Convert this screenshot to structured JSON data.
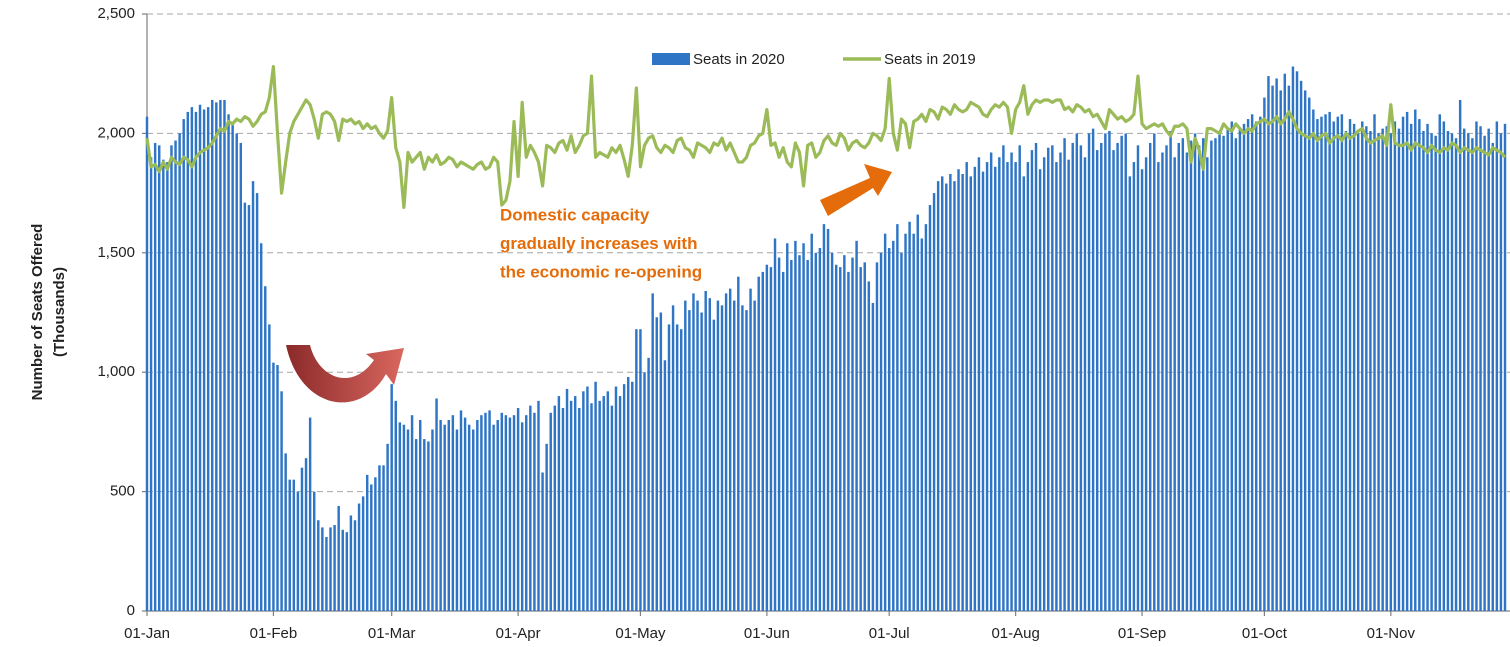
{
  "chart_data": {
    "type": "bar-line",
    "ylabel": [
      "Number of Seats Offered",
      "(Thousands)"
    ],
    "annotation": [
      "Domestic capacity",
      "gradually increases with",
      "the economic re-opening"
    ],
    "annotation_color": "#e46c0a",
    "ylim": [
      0,
      2500
    ],
    "yticks": [
      0,
      500,
      {
        "value": 1000,
        "label": "1,000"
      },
      {
        "value": 1500,
        "label": "1,500"
      },
      {
        "value": 2000,
        "label": "2,000"
      },
      {
        "value": 2500,
        "label": "2,500"
      }
    ],
    "grid": true,
    "categories": [
      "01-Jan",
      null,
      null,
      null,
      null,
      null,
      null,
      null,
      null,
      null,
      null,
      null,
      null,
      null,
      null,
      null,
      null,
      null,
      null,
      null,
      null,
      null,
      null,
      null,
      null,
      null,
      null,
      null,
      null,
      null,
      null,
      "01-Feb",
      null,
      null,
      null,
      null,
      null,
      null,
      null,
      null,
      null,
      null,
      null,
      null,
      null,
      null,
      null,
      null,
      null,
      null,
      null,
      null,
      null,
      null,
      null,
      null,
      null,
      null,
      null,
      null,
      "01-Mar",
      null,
      null,
      null,
      null,
      null,
      null,
      null,
      null,
      null,
      null,
      null,
      null,
      null,
      null,
      null,
      null,
      null,
      null,
      null,
      null,
      null,
      null,
      null,
      null,
      null,
      null,
      null,
      null,
      null,
      null,
      "01-Apr",
      null,
      null,
      null,
      null,
      null,
      null,
      null,
      null,
      null,
      null,
      null,
      null,
      null,
      null,
      null,
      null,
      null,
      null,
      null,
      null,
      null,
      null,
      null,
      null,
      null,
      null,
      null,
      null,
      null,
      "01-May",
      null,
      null,
      null,
      null,
      null,
      null,
      null,
      null,
      null,
      null,
      null,
      null,
      null,
      null,
      null,
      null,
      null,
      null,
      null,
      null,
      null,
      null,
      null,
      null,
      null,
      null,
      null,
      null,
      null,
      null,
      "01-Jun",
      null,
      null,
      null,
      null,
      null,
      null,
      null,
      null,
      null,
      null,
      null,
      null,
      null,
      null,
      null,
      null,
      null,
      null,
      null,
      null,
      null,
      null,
      null,
      null,
      null,
      null,
      null,
      null,
      null,
      "01-Jul",
      null,
      null,
      null,
      null,
      null,
      null,
      null,
      null,
      null,
      null,
      null,
      null,
      null,
      null,
      null,
      null,
      null,
      null,
      null,
      null,
      null,
      null,
      null,
      null,
      null,
      null,
      null,
      null,
      null,
      null,
      "01-Aug",
      null,
      null,
      null,
      null,
      null,
      null,
      null,
      null,
      null,
      null,
      null,
      null,
      null,
      null,
      null,
      null,
      null,
      null,
      null,
      null,
      null,
      null,
      null,
      null,
      null,
      null,
      null,
      null,
      null,
      null,
      "01-Sep",
      null,
      null,
      null,
      null,
      null,
      null,
      null,
      null,
      null,
      null,
      null,
      null,
      null,
      null,
      null,
      null,
      null,
      null,
      null,
      null,
      null,
      null,
      null,
      null,
      null,
      null,
      null,
      null,
      null,
      "01-Oct",
      null,
      null,
      null,
      null,
      null,
      null,
      null,
      null,
      null,
      null,
      null,
      null,
      null,
      null,
      null,
      null,
      null,
      null,
      null,
      null,
      null,
      null,
      null,
      null,
      null,
      null,
      null,
      null,
      null,
      null,
      "01-Nov",
      null,
      null,
      null,
      null,
      null,
      null,
      null,
      null,
      null,
      null,
      null,
      null,
      null,
      null,
      null,
      null,
      null,
      null,
      null,
      null,
      null,
      null,
      null,
      null,
      null,
      null,
      null,
      null
    ],
    "series": [
      {
        "name": "Seats in 2020",
        "type": "bar",
        "color": "#2e75c6",
        "values": [
          2070,
          1900,
          1960,
          1950,
          1890,
          1880,
          1950,
          1970,
          2000,
          2060,
          2090,
          2110,
          2090,
          2120,
          2100,
          2110,
          2140,
          2130,
          2140,
          2140,
          2080,
          2040,
          2000,
          1960,
          1710,
          1700,
          1800,
          1750,
          1540,
          1360,
          1200,
          1040,
          1030,
          920,
          660,
          550,
          550,
          500,
          600,
          640,
          810,
          500,
          380,
          350,
          310,
          350,
          360,
          440,
          340,
          330,
          400,
          380,
          450,
          480,
          570,
          530,
          560,
          610,
          610,
          700,
          950,
          880,
          790,
          780,
          760,
          820,
          720,
          800,
          720,
          710,
          760,
          890,
          800,
          780,
          800,
          820,
          760,
          840,
          810,
          780,
          760,
          800,
          820,
          830,
          840,
          780,
          800,
          830,
          820,
          810,
          820,
          850,
          790,
          820,
          860,
          830,
          880,
          580,
          700,
          830,
          860,
          900,
          850,
          930,
          880,
          900,
          850,
          920,
          940,
          870,
          960,
          880,
          900,
          920,
          860,
          940,
          900,
          950,
          980,
          960,
          1180,
          1180,
          1000,
          1060,
          1330,
          1230,
          1250,
          1050,
          1200,
          1280,
          1200,
          1180,
          1300,
          1260,
          1330,
          1300,
          1250,
          1340,
          1310,
          1220,
          1300,
          1280,
          1330,
          1350,
          1300,
          1400,
          1280,
          1260,
          1350,
          1300,
          1400,
          1420,
          1450,
          1440,
          1560,
          1480,
          1420,
          1540,
          1470,
          1550,
          1490,
          1540,
          1470,
          1580,
          1500,
          1520,
          1620,
          1600,
          1500,
          1450,
          1440,
          1490,
          1420,
          1480,
          1550,
          1440,
          1460,
          1380,
          1290,
          1460,
          1500,
          1580,
          1520,
          1550,
          1620,
          1500,
          1580,
          1630,
          1580,
          1660,
          1560,
          1620,
          1700,
          1750,
          1800,
          1820,
          1790,
          1830,
          1800,
          1850,
          1830,
          1880,
          1820,
          1860,
          1900,
          1840,
          1880,
          1920,
          1860,
          1900,
          1950,
          1880,
          1920,
          1880,
          1950,
          1820,
          1880,
          1930,
          1960,
          1850,
          1900,
          1940,
          1950,
          1880,
          1920,
          1980,
          1890,
          1960,
          2000,
          1950,
          1900,
          2000,
          2020,
          1930,
          1960,
          2000,
          2010,
          1930,
          1960,
          1990,
          2000,
          1820,
          1880,
          1950,
          1850,
          1900,
          1960,
          2000,
          1880,
          1920,
          1950,
          2010,
          1900,
          1960,
          1980,
          1920,
          1970,
          2000,
          1950,
          1980,
          1900,
          1970,
          1980,
          2000,
          1990,
          2020,
          2050,
          1980,
          2020,
          2040,
          2060,
          2080,
          2050,
          2070,
          2150,
          2240,
          2200,
          2230,
          2180,
          2250,
          2200,
          2280,
          2260,
          2220,
          2180,
          2150,
          2100,
          2060,
          2070,
          2080,
          2090,
          2050,
          2070,
          2080,
          2010,
          2060,
          2040,
          2000,
          2050,
          2030,
          2010,
          2080,
          2000,
          2020,
          2030,
          2000,
          2050,
          2020,
          2070,
          2090,
          2040,
          2100,
          2060,
          2010,
          2040,
          2000,
          1990,
          2080,
          2050,
          2010,
          2000,
          1980,
          2140,
          2020,
          2000,
          1980,
          2050,
          2030,
          1990,
          2020,
          1960,
          2050,
          2000,
          2040
        ]
      },
      {
        "name": "Seats in 2019",
        "type": "line",
        "color": "#9bbb59",
        "values": [
          1980,
          1860,
          1870,
          1840,
          1880,
          1850,
          1900,
          1880,
          1870,
          1900,
          1890,
          1860,
          1900,
          1920,
          1930,
          1940,
          1960,
          1990,
          2020,
          2010,
          2050,
          2040,
          2060,
          2050,
          2070,
          2060,
          2030,
          2050,
          2080,
          2090,
          2150,
          2280,
          2000,
          1750,
          1880,
          2000,
          2050,
          2080,
          2110,
          2140,
          2120,
          2060,
          1980,
          2080,
          2090,
          2080,
          2050,
          1970,
          2060,
          2050,
          2060,
          2040,
          2050,
          2020,
          2040,
          2020,
          2030,
          2000,
          1980,
          2010,
          2150,
          1940,
          1880,
          1690,
          1920,
          1880,
          1900,
          1920,
          1850,
          1900,
          1880,
          1910,
          1870,
          1880,
          1900,
          1890,
          1860,
          1880,
          1870,
          1860,
          1850,
          1870,
          1880,
          1850,
          1860,
          1900,
          1880,
          1700,
          1720,
          1800,
          2050,
          1820,
          2130,
          1900,
          1950,
          1920,
          1880,
          1780,
          1950,
          1940,
          1920,
          1960,
          1970,
          1930,
          1990,
          1920,
          1950,
          1990,
          2000,
          2240,
          1900,
          1920,
          1910,
          1900,
          1940,
          1920,
          1950,
          1890,
          1820,
          1950,
          2190,
          1860,
          1950,
          1980,
          1990,
          1940,
          1920,
          1950,
          1940,
          1920,
          1970,
          1980,
          1940,
          1930,
          1900,
          1960,
          1950,
          1940,
          1920,
          1960,
          1950,
          1980,
          1930,
          1960,
          1920,
          1880,
          1880,
          1900,
          1950,
          1960,
          1990,
          2000,
          2100,
          1950,
          1960,
          1900,
          1940,
          1880,
          1860,
          1960,
          1920,
          1780,
          1950,
          1960,
          1900,
          1920,
          1970,
          1990,
          1960,
          1950,
          2000,
          1980,
          1930,
          1960,
          1970,
          1950,
          1940,
          1960,
          2000,
          1990,
          1970,
          2020,
          2230,
          2000,
          1930,
          2060,
          2040,
          1940,
          2050,
          2060,
          2080,
          2050,
          2100,
          2090,
          2060,
          2110,
          2100,
          2080,
          2120,
          2100,
          2090,
          2100,
          2130,
          2120,
          2110,
          2080,
          2070,
          2100,
          2120,
          2110,
          2130,
          2110,
          2000,
          2100,
          2130,
          2200,
          2080,
          2120,
          2140,
          2130,
          2140,
          2140,
          2130,
          2140,
          2140,
          2100,
          2110,
          2090,
          2120,
          2110,
          2090,
          2100,
          2070,
          2080,
          2050,
          2020,
          2100,
          2080,
          2060,
          2070,
          2050,
          2060,
          2080,
          2240,
          2040,
          2020,
          2030,
          2040,
          2030,
          2040,
          2010,
          1990,
          2030,
          2030,
          2040,
          2020,
          1880,
          1980,
          1930,
          1850,
          2020,
          2020,
          2010,
          2000,
          2040,
          2020,
          2010,
          2040,
          2020,
          2000,
          2020,
          2010,
          2040,
          2050,
          2060,
          2040,
          2050,
          2070,
          2040,
          2060,
          2090,
          2060,
          2020,
          2000,
          1990,
          1980,
          2000,
          1970,
          1990,
          2000,
          1960,
          1980,
          1990,
          1970,
          2000,
          1980,
          1990,
          2010,
          2020,
          1980,
          1960,
          1970,
          1980,
          1990,
          1950,
          2120,
          1960,
          1950,
          1950,
          1960,
          1930,
          1960,
          1950,
          1940,
          1920,
          1950,
          1930,
          1920,
          1940,
          1930,
          1960,
          1950,
          1920,
          1940,
          1930,
          1920,
          1940,
          1930,
          1920,
          1910,
          1940,
          1930,
          1920,
          1900
        ]
      }
    ]
  }
}
